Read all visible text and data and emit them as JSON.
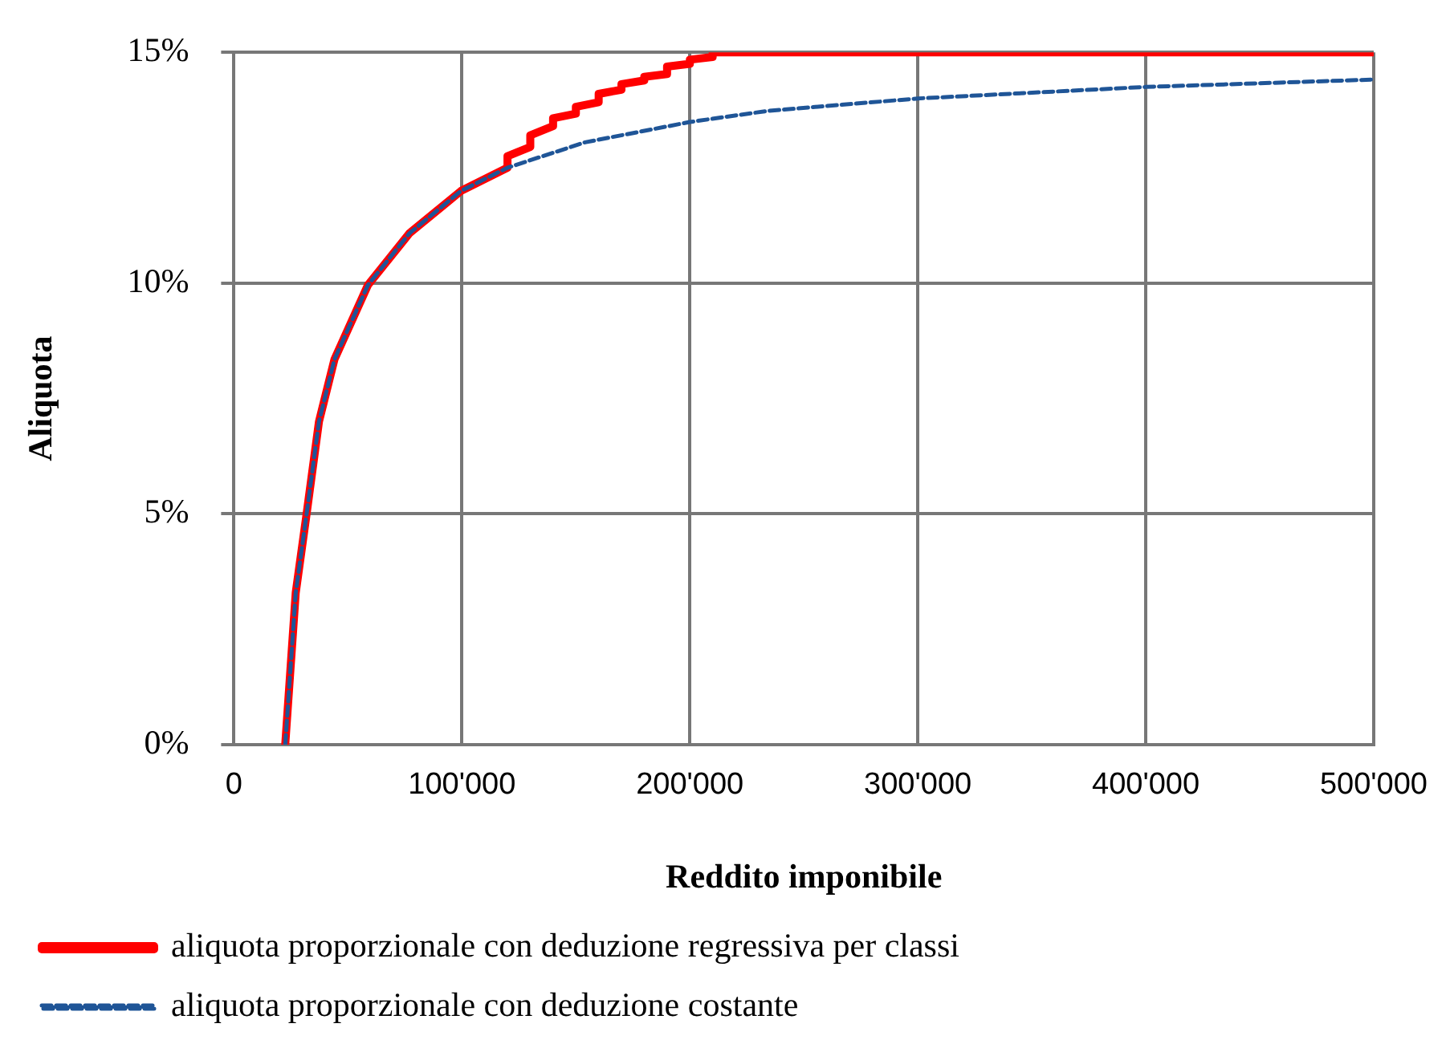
{
  "chart_data": {
    "type": "line",
    "xlabel": "Reddito imponibile",
    "ylabel": "Aliquota",
    "xlim": [
      0,
      500000
    ],
    "ylim": [
      0,
      15
    ],
    "xticks": [
      0,
      {
        "value": 100000,
        "label": "100'000"
      },
      {
        "value": 200000,
        "label": "200'000"
      },
      {
        "value": 300000,
        "label": "300'000"
      },
      {
        "value": 400000,
        "label": "400'000"
      },
      {
        "value": 500000,
        "label": "500'000"
      }
    ],
    "yticks": [
      {
        "value": 0,
        "label": "0%"
      },
      {
        "value": 5,
        "label": "5%"
      },
      {
        "value": 10,
        "label": "10%"
      },
      {
        "value": 15,
        "label": "15%"
      }
    ],
    "grid": true,
    "legend": "bottom",
    "marker": "none",
    "series": [
      {
        "name": "aliquota proporzionale con deduzione regressiva per classi",
        "color": "#ff0000",
        "line_style": "solid",
        "x": [
          22500,
          27100,
          31600,
          37300,
          44100,
          58800,
          77000,
          99700,
          120000,
          120000,
          130000,
          130000,
          140000,
          140000,
          150000,
          150000,
          160000,
          160000,
          170000,
          170000,
          180000,
          180000,
          190000,
          190000,
          200000,
          200000,
          210000,
          210000,
          500000
        ],
        "values": [
          0,
          3.29,
          4.9,
          7.0,
          8.35,
          9.96,
          11.08,
          12.0,
          12.5,
          12.75,
          12.95,
          13.2,
          13.4,
          13.57,
          13.67,
          13.82,
          13.92,
          14.1,
          14.19,
          14.31,
          14.39,
          14.47,
          14.53,
          14.69,
          14.75,
          14.84,
          14.9,
          15,
          15
        ]
      },
      {
        "name": "aliquota proporzionale con deduzione costante",
        "color": "#1f5597",
        "line_style": "dashed",
        "x": [
          22500,
          27100,
          31600,
          37300,
          44100,
          58800,
          77000,
          99700,
          120000,
          154000,
          200000,
          234000,
          300000,
          400000,
          500000
        ],
        "values": [
          0,
          3.29,
          4.9,
          7.0,
          8.35,
          9.96,
          11.08,
          12.0,
          12.5,
          13.05,
          13.49,
          13.73,
          14.0,
          14.25,
          14.41
        ]
      }
    ]
  }
}
